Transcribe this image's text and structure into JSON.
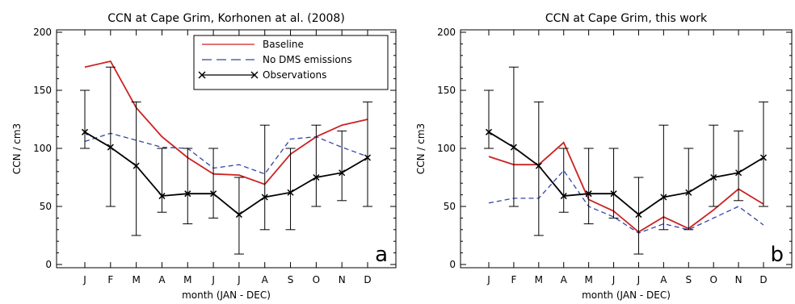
{
  "chart_data": [
    {
      "type": "line",
      "title": "CCN at Cape Grim, Korhonen at al. (2008)",
      "xlabel": "month (JAN - DEC)",
      "ylabel": "CCN / cm3",
      "panel_letter": "a",
      "categories": [
        "J",
        "F",
        "M",
        "A",
        "M",
        "J",
        "J",
        "A",
        "S",
        "O",
        "N",
        "D"
      ],
      "ylim": [
        0,
        200
      ],
      "yticks": [
        0,
        50,
        100,
        150,
        200
      ],
      "legend": {
        "placement": "top-right",
        "entries": [
          "Baseline",
          "No DMS emissions",
          "Observations"
        ]
      },
      "series": [
        {
          "name": "Baseline",
          "color": "#cc2222",
          "style": "solid",
          "values": [
            170,
            175,
            135,
            110,
            92,
            78,
            77,
            69,
            95,
            110,
            120,
            125
          ]
        },
        {
          "name": "No DMS emissions",
          "color": "#3344aa",
          "style": "dashed",
          "values": [
            106,
            113,
            107,
            101,
            100,
            83,
            86,
            78,
            108,
            110,
            101,
            93
          ]
        },
        {
          "name": "Observations",
          "color": "#000000",
          "style": "solid-x",
          "values": [
            114,
            101,
            85,
            59,
            61,
            61,
            43,
            58,
            62,
            75,
            79,
            92
          ],
          "err_low": [
            100,
            50,
            25,
            45,
            35,
            40,
            9,
            30,
            30,
            50,
            55,
            50
          ],
          "err_high": [
            150,
            170,
            140,
            100,
            100,
            100,
            75,
            120,
            100,
            120,
            115,
            140
          ]
        }
      ]
    },
    {
      "type": "line",
      "title": "CCN at Cape Grim, this work",
      "xlabel": "month (JAN - DEC)",
      "ylabel": "CCN / cm3",
      "panel_letter": "b",
      "categories": [
        "J",
        "F",
        "M",
        "A",
        "M",
        "J",
        "J",
        "A",
        "S",
        "O",
        "N",
        "D"
      ],
      "ylim": [
        0,
        200
      ],
      "yticks": [
        0,
        50,
        100,
        150,
        200
      ],
      "series": [
        {
          "name": "Baseline",
          "color": "#cc2222",
          "style": "solid",
          "values": [
            93,
            86,
            86,
            105,
            56,
            46,
            28,
            41,
            31,
            47,
            65,
            52
          ]
        },
        {
          "name": "No DMS emissions",
          "color": "#3344aa",
          "style": "dashed",
          "values": [
            53,
            57,
            57,
            81,
            50,
            41,
            27,
            35,
            30,
            40,
            50,
            34
          ]
        },
        {
          "name": "Observations",
          "color": "#000000",
          "style": "solid-x",
          "values": [
            114,
            101,
            85,
            59,
            61,
            61,
            43,
            58,
            62,
            75,
            79,
            92
          ],
          "err_low": [
            100,
            50,
            25,
            45,
            35,
            40,
            9,
            30,
            30,
            50,
            55,
            50
          ],
          "err_high": [
            150,
            170,
            140,
            100,
            100,
            100,
            75,
            120,
            100,
            120,
            115,
            140
          ]
        }
      ]
    }
  ]
}
